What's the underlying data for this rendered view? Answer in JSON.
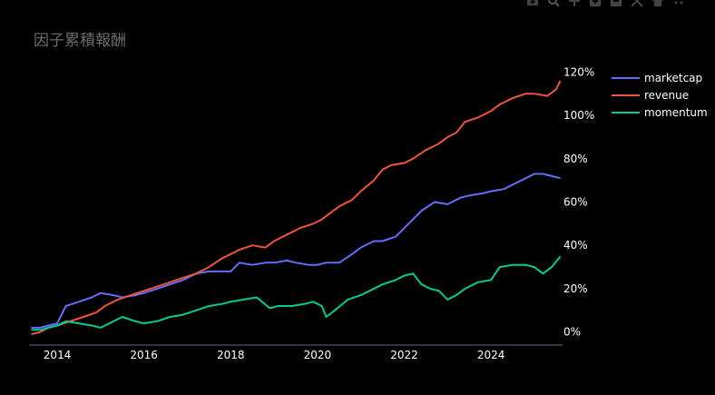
{
  "toolbar": {
    "icons": [
      "camera-icon",
      "zoom-icon",
      "pan-icon",
      "zoom-in-icon",
      "zoom-out-icon",
      "autoscale-icon",
      "home-icon",
      "plotly-logo-icon"
    ]
  },
  "colors": {
    "background": "#000000",
    "title": "#6b6b6b",
    "axis_text": "#ffffff",
    "axis_line": "#5f6b82",
    "marketcap": "#636efa",
    "revenue": "#ef553b",
    "momentum": "#00cc96"
  },
  "chart_data": {
    "type": "line",
    "title": "因子累積報酬",
    "xlabel": "",
    "ylabel": "",
    "xlim": [
      2013.35,
      2025.65
    ],
    "ylim": [
      -0.06,
      1.26
    ],
    "x_ticks": [
      2014,
      2016,
      2018,
      2020,
      2022,
      2024
    ],
    "x_tick_labels": [
      "2014",
      "2016",
      "2018",
      "2020",
      "2022",
      "2024"
    ],
    "y_ticks": [
      0,
      0.2,
      0.4,
      0.6,
      0.8,
      1.0,
      1.2
    ],
    "y_tick_labels": [
      "0%",
      "20%",
      "40%",
      "60%",
      "80%",
      "100%",
      "120%"
    ],
    "y_axis_side": "right",
    "grid": false,
    "legend_position": "top-right",
    "series": [
      {
        "name": "marketcap",
        "x": [
          2013.4,
          2013.6,
          2013.8,
          2014.0,
          2014.2,
          2014.5,
          2014.8,
          2015.0,
          2015.3,
          2015.5,
          2015.8,
          2016.0,
          2016.3,
          2016.6,
          2016.9,
          2017.2,
          2017.5,
          2017.8,
          2018.0,
          2018.2,
          2018.5,
          2018.8,
          2019.0,
          2019.3,
          2019.5,
          2019.8,
          2020.0,
          2020.2,
          2020.5,
          2020.8,
          2021.0,
          2021.3,
          2021.5,
          2021.8,
          2022.0,
          2022.2,
          2022.4,
          2022.7,
          2023.0,
          2023.3,
          2023.5,
          2023.8,
          2024.0,
          2024.3,
          2024.5,
          2024.8,
          2025.0,
          2025.2,
          2025.4,
          2025.6
        ],
        "y": [
          0.02,
          0.02,
          0.03,
          0.04,
          0.12,
          0.14,
          0.16,
          0.18,
          0.17,
          0.16,
          0.17,
          0.18,
          0.2,
          0.22,
          0.24,
          0.27,
          0.28,
          0.28,
          0.28,
          0.32,
          0.31,
          0.32,
          0.32,
          0.33,
          0.32,
          0.31,
          0.31,
          0.32,
          0.32,
          0.36,
          0.39,
          0.42,
          0.42,
          0.44,
          0.48,
          0.52,
          0.56,
          0.6,
          0.59,
          0.62,
          0.63,
          0.64,
          0.65,
          0.66,
          0.68,
          0.71,
          0.73,
          0.73,
          0.72,
          0.71
        ]
      },
      {
        "name": "revenue",
        "x": [
          2013.4,
          2013.6,
          2013.8,
          2014.0,
          2014.3,
          2014.6,
          2014.9,
          2015.1,
          2015.4,
          2015.7,
          2016.0,
          2016.3,
          2016.6,
          2016.9,
          2017.2,
          2017.5,
          2017.8,
          2018.0,
          2018.2,
          2018.5,
          2018.8,
          2019.0,
          2019.3,
          2019.6,
          2019.9,
          2020.1,
          2020.3,
          2020.5,
          2020.8,
          2021.0,
          2021.3,
          2021.5,
          2021.7,
          2022.0,
          2022.2,
          2022.5,
          2022.8,
          2023.0,
          2023.2,
          2023.4,
          2023.7,
          2024.0,
          2024.2,
          2024.5,
          2024.8,
          2025.0,
          2025.3,
          2025.5,
          2025.6
        ],
        "y": [
          -0.01,
          0.0,
          0.02,
          0.03,
          0.05,
          0.07,
          0.09,
          0.12,
          0.15,
          0.17,
          0.19,
          0.21,
          0.23,
          0.25,
          0.27,
          0.3,
          0.34,
          0.36,
          0.38,
          0.4,
          0.39,
          0.42,
          0.45,
          0.48,
          0.5,
          0.52,
          0.55,
          0.58,
          0.61,
          0.65,
          0.7,
          0.75,
          0.77,
          0.78,
          0.8,
          0.84,
          0.87,
          0.9,
          0.92,
          0.97,
          0.99,
          1.02,
          1.05,
          1.08,
          1.1,
          1.1,
          1.09,
          1.12,
          1.16
        ]
      },
      {
        "name": "momentum",
        "x": [
          2013.4,
          2013.6,
          2013.8,
          2014.0,
          2014.2,
          2014.5,
          2014.8,
          2015.0,
          2015.2,
          2015.5,
          2015.8,
          2016.0,
          2016.3,
          2016.6,
          2016.9,
          2017.2,
          2017.5,
          2017.8,
          2018.0,
          2018.3,
          2018.6,
          2018.9,
          2019.1,
          2019.4,
          2019.7,
          2019.9,
          2020.1,
          2020.2,
          2020.4,
          2020.7,
          2021.0,
          2021.2,
          2021.5,
          2021.8,
          2022.0,
          2022.2,
          2022.4,
          2022.6,
          2022.8,
          2023.0,
          2023.2,
          2023.4,
          2023.7,
          2024.0,
          2024.2,
          2024.5,
          2024.8,
          2025.0,
          2025.2,
          2025.4,
          2025.6
        ],
        "y": [
          0.01,
          0.01,
          0.02,
          0.03,
          0.05,
          0.04,
          0.03,
          0.02,
          0.04,
          0.07,
          0.05,
          0.04,
          0.05,
          0.07,
          0.08,
          0.1,
          0.12,
          0.13,
          0.14,
          0.15,
          0.16,
          0.11,
          0.12,
          0.12,
          0.13,
          0.14,
          0.12,
          0.07,
          0.1,
          0.15,
          0.17,
          0.19,
          0.22,
          0.24,
          0.26,
          0.27,
          0.22,
          0.2,
          0.19,
          0.15,
          0.17,
          0.2,
          0.23,
          0.24,
          0.3,
          0.31,
          0.31,
          0.3,
          0.27,
          0.3,
          0.35
        ]
      }
    ]
  }
}
